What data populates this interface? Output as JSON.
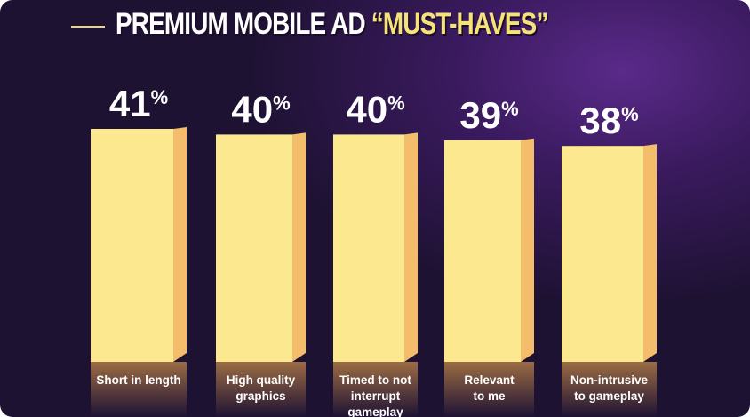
{
  "chart_data": {
    "type": "bar",
    "title": "PREMIUM MOBILE AD",
    "title_highlight": "“MUST-HAVES”",
    "categories": [
      "Short in length",
      "High quality graphics",
      "Timed to not interrupt gameplay",
      "Relevant to me",
      "Non-intrusive to gameplay"
    ],
    "category_lines": [
      [
        "Short in length"
      ],
      [
        "High quality",
        "graphics"
      ],
      [
        "Timed to not",
        "interrupt",
        "gameplay"
      ],
      [
        "Relevant",
        "to me"
      ],
      [
        "Non-intrusive",
        "to gameplay"
      ]
    ],
    "values": [
      41,
      40,
      40,
      39,
      38
    ],
    "value_suffix": "%",
    "xlabel": "",
    "ylabel": "",
    "ylim": [
      0,
      41
    ],
    "grid": false,
    "colors": {
      "bar_face": "#fbe88f",
      "bar_side": "#f4bd6b",
      "background": "#2a1745",
      "highlight": "#f5e37a"
    }
  }
}
